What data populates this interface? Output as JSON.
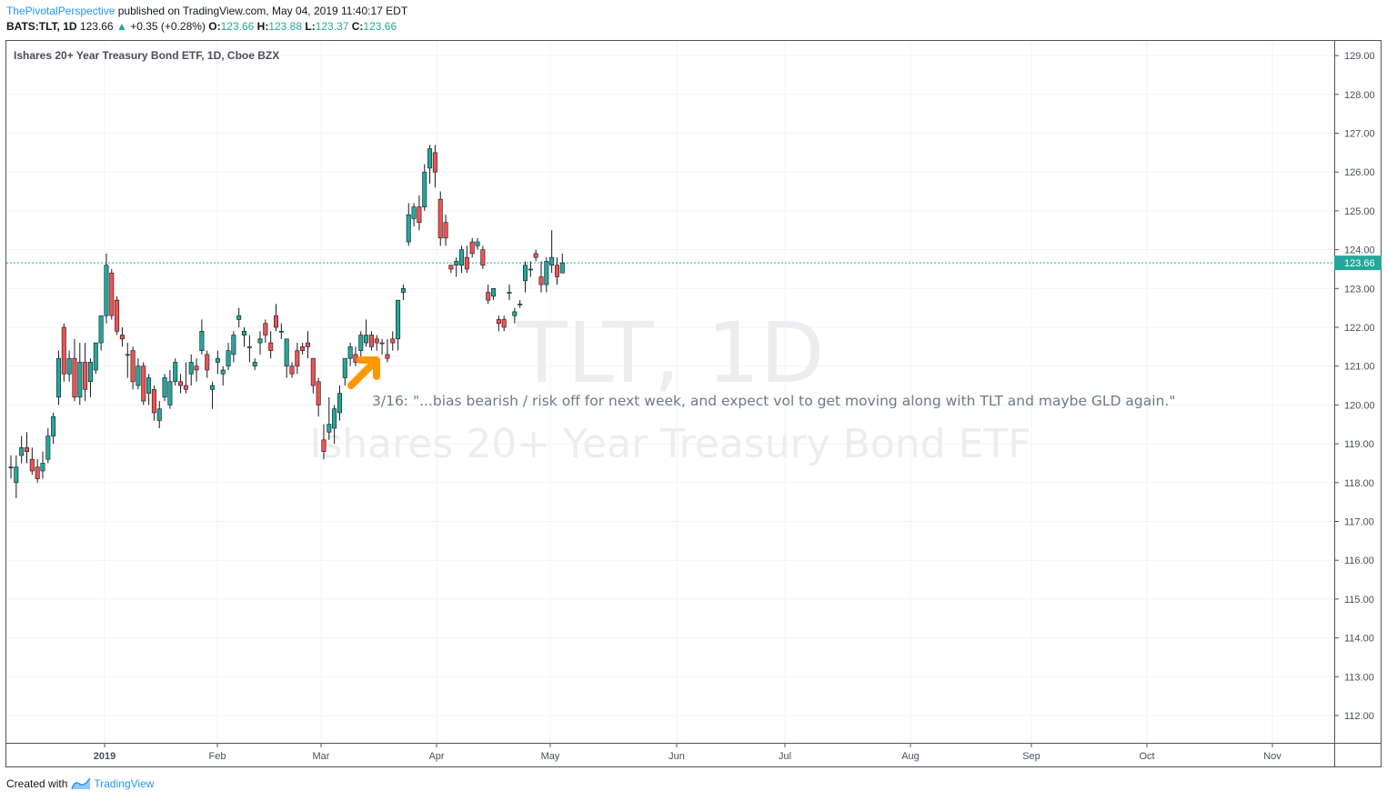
{
  "header": {
    "author": "ThePivotalPerspective",
    "published": "published on TradingView.com, May 04, 2019 11:40:17 EDT",
    "symbol": "BATS:TLT, 1D",
    "price": "123.66",
    "change": "+0.35 (+0.28%)",
    "open_label": "O:",
    "open": "123.66",
    "high_label": "H:",
    "high": "123.88",
    "low_label": "L:",
    "low": "123.37",
    "close_label": "C:",
    "close": "123.66"
  },
  "footer": {
    "created_with": "Created with",
    "brand": "TradingView"
  },
  "chart_data": {
    "type": "candlestick",
    "title": "Ishares 20+ Year Treasury Bond ETF, 1D, Cboe BZX",
    "watermark_symbol": "TLT, 1D",
    "watermark_name": "Ishares 20+ Year Treasury Bond ETF",
    "annotation": "3/16: \"...bias bearish / risk off for next week, and expect vol to get moving along with TLT and maybe GLD again.\"",
    "last_price": 123.66,
    "last_price_label": "123.66",
    "ylim": [
      111.25,
      129.3
    ],
    "y_ticks": [
      "112.00",
      "113.00",
      "114.00",
      "115.00",
      "116.00",
      "117.00",
      "118.00",
      "119.00",
      "120.00",
      "121.00",
      "122.00",
      "123.00",
      "124.00",
      "125.00",
      "126.00",
      "127.00",
      "128.00",
      "129.00"
    ],
    "x_ticks": [
      "2019",
      "Feb",
      "Mar",
      "Apr",
      "May",
      "Jun",
      "Jul",
      "Aug",
      "Sep",
      "Oct",
      "Nov"
    ],
    "grid": true,
    "colors": {
      "up": "#26a69a",
      "down": "#ef5350",
      "arrow": "#ff9800",
      "last_line": "#26a69a",
      "grid": "#f0f3fa"
    },
    "candles": [
      [
        118.4,
        118.7,
        118.1,
        118.4
      ],
      [
        118.0,
        118.7,
        117.6,
        118.4
      ],
      [
        118.7,
        119.2,
        118.5,
        118.9
      ],
      [
        118.9,
        119.3,
        118.5,
        118.8
      ],
      [
        118.6,
        118.9,
        118.2,
        118.3
      ],
      [
        118.4,
        118.6,
        118.0,
        118.1
      ],
      [
        118.3,
        118.8,
        118.1,
        118.5
      ],
      [
        118.6,
        119.4,
        118.5,
        119.2
      ],
      [
        119.2,
        119.8,
        119.0,
        119.7
      ],
      [
        120.2,
        121.4,
        120.0,
        121.2
      ],
      [
        122.0,
        122.1,
        120.6,
        120.8
      ],
      [
        120.8,
        121.4,
        120.6,
        121.2
      ],
      [
        121.2,
        121.7,
        120.1,
        120.2
      ],
      [
        120.2,
        121.6,
        120.0,
        121.1
      ],
      [
        121.1,
        121.6,
        120.1,
        120.4
      ],
      [
        120.6,
        121.2,
        120.2,
        121.1
      ],
      [
        120.9,
        121.6,
        120.8,
        121.6
      ],
      [
        121.6,
        122.2,
        121.4,
        122.3
      ],
      [
        122.3,
        123.9,
        122.1,
        123.6
      ],
      [
        123.4,
        123.5,
        122.2,
        122.3
      ],
      [
        122.7,
        122.8,
        121.8,
        121.9
      ],
      [
        121.8,
        122.0,
        121.5,
        121.7
      ],
      [
        121.3,
        121.6,
        120.7,
        121.3
      ],
      [
        121.4,
        121.5,
        120.4,
        120.6
      ],
      [
        120.5,
        121.2,
        120.4,
        121.0
      ],
      [
        121.0,
        121.1,
        120.0,
        120.1
      ],
      [
        120.3,
        120.8,
        120.0,
        120.7
      ],
      [
        120.4,
        120.5,
        119.6,
        119.8
      ],
      [
        119.6,
        120.1,
        119.4,
        119.9
      ],
      [
        120.2,
        120.8,
        120.1,
        120.7
      ],
      [
        120.0,
        120.9,
        119.9,
        120.6
      ],
      [
        120.6,
        121.2,
        120.5,
        121.1
      ],
      [
        120.6,
        120.8,
        120.3,
        120.5
      ],
      [
        120.5,
        121.1,
        120.3,
        120.4
      ],
      [
        120.8,
        121.3,
        120.5,
        121.1
      ],
      [
        121.0,
        121.2,
        120.6,
        120.9
      ],
      [
        121.4,
        122.2,
        121.3,
        121.9
      ],
      [
        121.3,
        121.4,
        120.7,
        120.9
      ],
      [
        120.4,
        120.6,
        119.9,
        120.5
      ],
      [
        121.1,
        121.4,
        120.8,
        121.2
      ],
      [
        120.8,
        121.0,
        120.5,
        120.9
      ],
      [
        121.0,
        121.6,
        120.9,
        121.4
      ],
      [
        121.3,
        121.9,
        121.1,
        121.8
      ],
      [
        122.2,
        122.5,
        122.0,
        122.3
      ],
      [
        121.8,
        122.0,
        121.5,
        121.9
      ],
      [
        121.5,
        121.8,
        121.1,
        121.5
      ],
      [
        121.0,
        121.2,
        120.9,
        121.1
      ],
      [
        121.6,
        121.9,
        121.3,
        121.7
      ],
      [
        122.1,
        122.2,
        121.6,
        121.8
      ],
      [
        121.6,
        121.9,
        121.2,
        121.4
      ],
      [
        122.3,
        122.6,
        121.9,
        122.0
      ],
      [
        121.9,
        122.1,
        121.7,
        121.9
      ],
      [
        121.0,
        121.7,
        120.7,
        121.7
      ],
      [
        121.0,
        121.1,
        120.7,
        120.8
      ],
      [
        121.4,
        121.6,
        120.8,
        121.0
      ],
      [
        121.5,
        121.6,
        121.3,
        121.4
      ],
      [
        121.6,
        121.9,
        121.2,
        121.5
      ],
      [
        121.2,
        121.2,
        120.3,
        120.5
      ],
      [
        120.6,
        120.7,
        119.7,
        120.0
      ],
      [
        119.1,
        119.5,
        118.6,
        118.8
      ],
      [
        119.3,
        120.2,
        119.1,
        119.5
      ],
      [
        119.4,
        120.0,
        119.0,
        119.9
      ],
      [
        119.8,
        120.5,
        119.6,
        120.3
      ],
      [
        120.7,
        121.2,
        120.5,
        121.2
      ],
      [
        121.2,
        121.6,
        121.0,
        121.5
      ],
      [
        121.3,
        121.5,
        121.0,
        121.1
      ],
      [
        121.4,
        121.9,
        121.2,
        121.8
      ],
      [
        121.6,
        122.2,
        121.5,
        121.8
      ],
      [
        121.8,
        121.9,
        121.4,
        121.5
      ],
      [
        121.7,
        121.8,
        121.4,
        121.6
      ],
      [
        121.6,
        121.7,
        121.3,
        121.6
      ],
      [
        121.3,
        121.7,
        121.1,
        121.2
      ],
      [
        121.7,
        121.9,
        121.4,
        121.6
      ],
      [
        121.7,
        122.7,
        121.4,
        122.7
      ],
      [
        122.9,
        123.1,
        122.7,
        123.0
      ],
      [
        124.2,
        125.2,
        124.1,
        124.9
      ],
      [
        124.8,
        125.2,
        124.6,
        125.1
      ],
      [
        125.1,
        125.4,
        124.5,
        124.7
      ],
      [
        125.1,
        126.2,
        125.0,
        126.0
      ],
      [
        126.1,
        126.7,
        125.7,
        126.6
      ],
      [
        126.5,
        126.7,
        125.6,
        126.0
      ],
      [
        125.3,
        125.5,
        124.1,
        124.3
      ],
      [
        124.7,
        124.9,
        124.1,
        124.3
      ],
      [
        123.6,
        123.6,
        123.4,
        123.5
      ],
      [
        123.6,
        123.8,
        123.3,
        123.7
      ],
      [
        123.6,
        124.1,
        123.4,
        124.0
      ],
      [
        123.8,
        124.1,
        123.4,
        123.5
      ],
      [
        124.2,
        124.3,
        123.8,
        123.9
      ],
      [
        124.1,
        124.3,
        124.0,
        124.2
      ],
      [
        124.0,
        124.1,
        123.5,
        123.6
      ],
      [
        122.9,
        123.1,
        122.6,
        122.7
      ],
      [
        122.8,
        123.0,
        122.7,
        123.0
      ],
      [
        122.2,
        122.3,
        121.9,
        122.1
      ],
      [
        122.2,
        122.3,
        121.9,
        122.0
      ],
      [
        122.9,
        123.1,
        122.7,
        122.9
      ],
      [
        122.3,
        122.5,
        122.1,
        122.4
      ],
      [
        122.6,
        122.7,
        122.5,
        122.6
      ],
      [
        123.2,
        123.7,
        122.9,
        123.6
      ],
      [
        123.5,
        123.7,
        123.3,
        123.5
      ],
      [
        123.9,
        124.0,
        123.7,
        123.8
      ],
      [
        123.3,
        123.7,
        122.9,
        123.1
      ],
      [
        123.1,
        123.8,
        122.9,
        123.7
      ],
      [
        123.6,
        124.5,
        123.4,
        123.8
      ],
      [
        123.6,
        123.8,
        123.1,
        123.3
      ],
      [
        123.4,
        123.9,
        123.4,
        123.66
      ]
    ]
  }
}
